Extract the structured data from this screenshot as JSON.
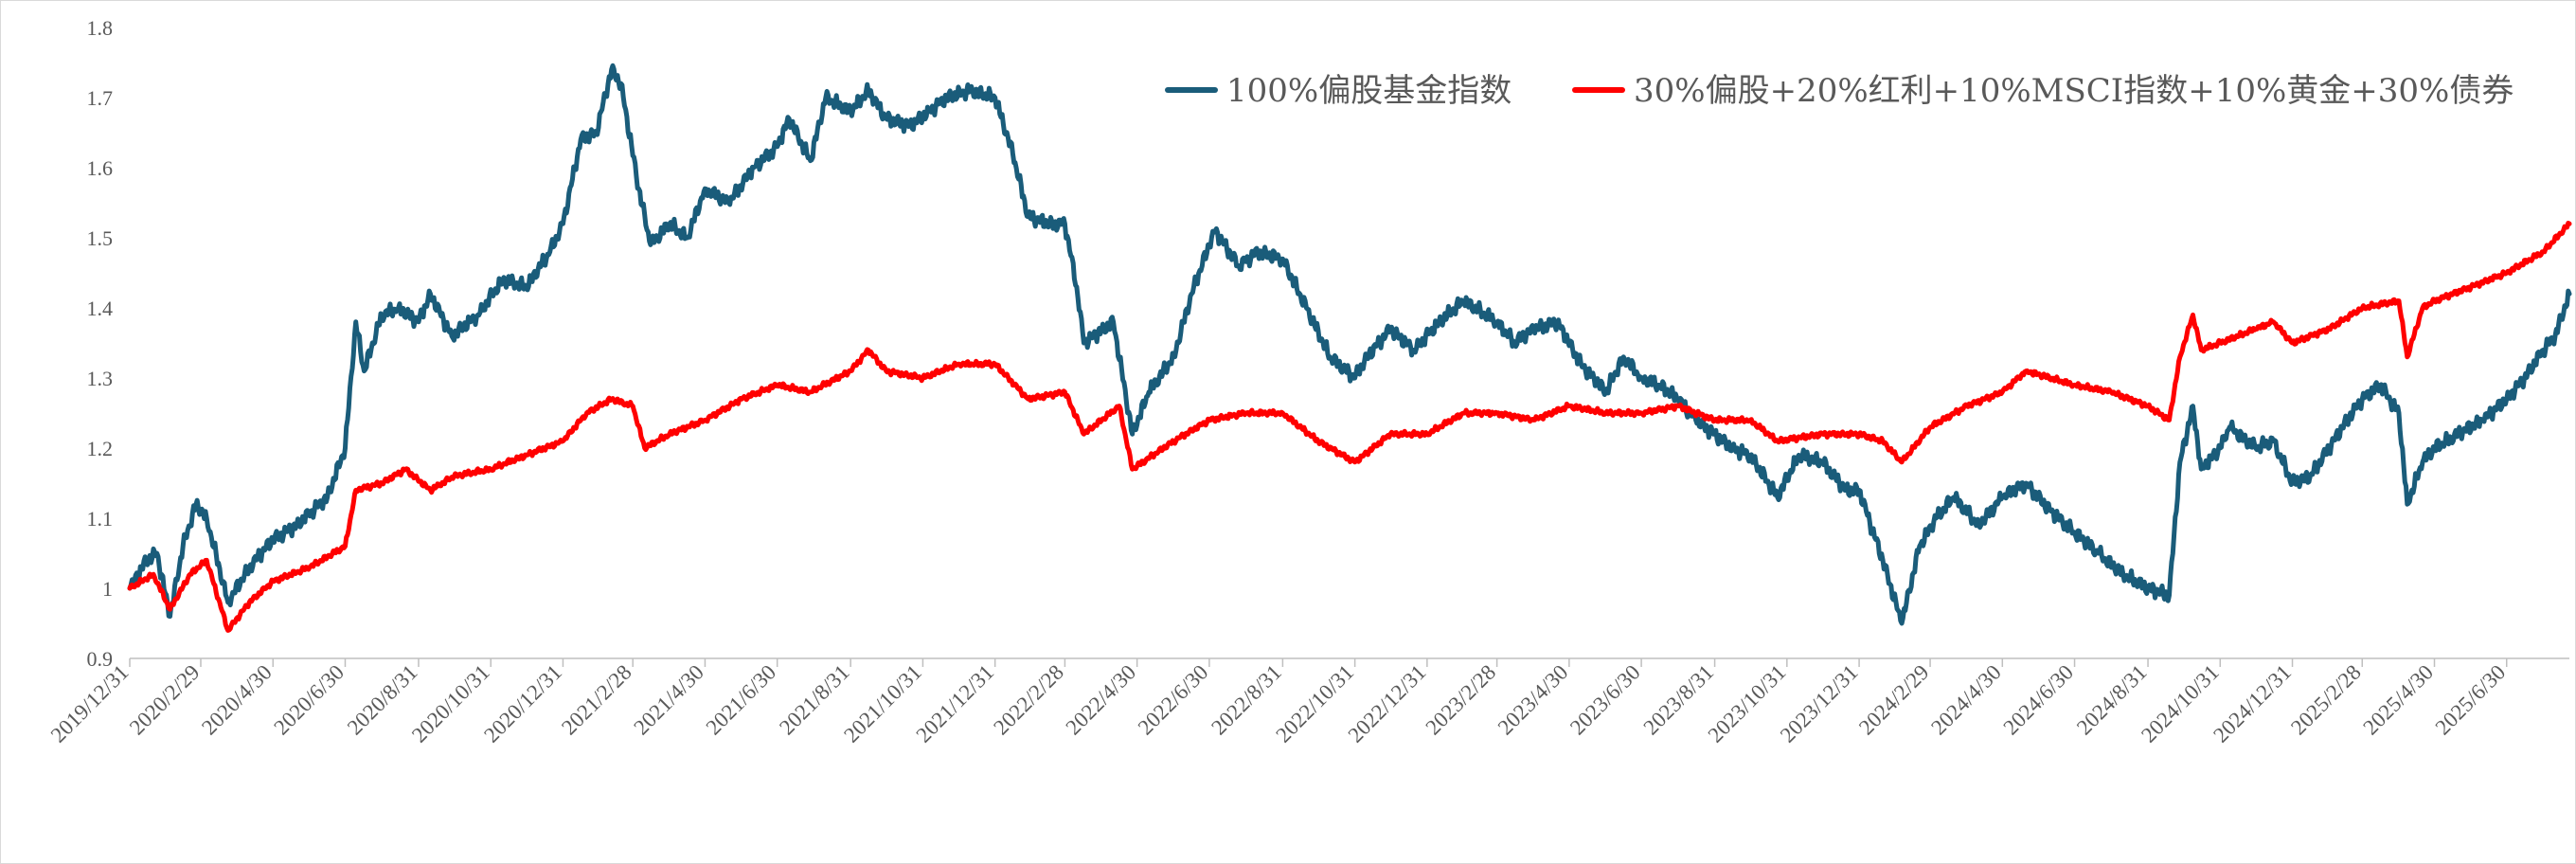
{
  "chart_data": {
    "type": "line",
    "title": "",
    "xlabel": "",
    "ylabel": "",
    "ylim": [
      0.9,
      1.8
    ],
    "y_ticks": [
      "0.9",
      "1",
      "1.1",
      "1.2",
      "1.3",
      "1.4",
      "1.5",
      "1.6",
      "1.7",
      "1.8"
    ],
    "x_ticks": [
      "2019/12/31",
      "2020/2/29",
      "2020/4/30",
      "2020/6/30",
      "2020/8/31",
      "2020/10/31",
      "2020/12/31",
      "2021/2/28",
      "2021/4/30",
      "2021/6/30",
      "2021/8/31",
      "2021/10/31",
      "2021/12/31",
      "2022/2/28",
      "2022/4/30",
      "2022/6/30",
      "2022/8/31",
      "2022/10/31",
      "2022/12/31",
      "2023/2/28",
      "2023/4/30",
      "2023/6/30",
      "2023/8/31",
      "2023/10/31",
      "2023/12/31",
      "2024/2/29",
      "2024/4/30",
      "2024/6/30",
      "2024/8/31",
      "2024/10/31",
      "2024/12/31",
      "2025/2/28",
      "2025/4/30",
      "2025/6/30"
    ],
    "x_range": [
      "2019/12/31",
      "2025/8/22"
    ],
    "grid": false,
    "legend_position": "top-right",
    "series": [
      {
        "name": "100%偏股基金指数",
        "color": "#1a5c7a",
        "points": [
          [
            "2019/12/31",
            1.0
          ],
          [
            "2020/1/14",
            1.04
          ],
          [
            "2020/1/23",
            1.05
          ],
          [
            "2020/2/3",
            0.96
          ],
          [
            "2020/2/14",
            1.06
          ],
          [
            "2020/2/25",
            1.12
          ],
          [
            "2020/3/5",
            1.1
          ],
          [
            "2020/3/23",
            0.98
          ],
          [
            "2020/4/10",
            1.03
          ],
          [
            "2020/4/30",
            1.07
          ],
          [
            "2020/5/20",
            1.09
          ],
          [
            "2020/6/15",
            1.13
          ],
          [
            "2020/6/30",
            1.2
          ],
          [
            "2020/7/9",
            1.38
          ],
          [
            "2020/7/16",
            1.31
          ],
          [
            "2020/7/31",
            1.39
          ],
          [
            "2020/8/14",
            1.4
          ],
          [
            "2020/8/31",
            1.38
          ],
          [
            "2020/9/10",
            1.42
          ],
          [
            "2020/9/28",
            1.36
          ],
          [
            "2020/10/20",
            1.39
          ],
          [
            "2020/11/10",
            1.44
          ],
          [
            "2020/11/30",
            1.43
          ],
          [
            "2020/12/20",
            1.48
          ],
          [
            "2020/12/31",
            1.52
          ],
          [
            "2021/1/15",
            1.64
          ],
          [
            "2021/1/28",
            1.65
          ],
          [
            "2021/2/10",
            1.74
          ],
          [
            "2021/2/18",
            1.72
          ],
          [
            "2021/3/5",
            1.57
          ],
          [
            "2021/3/15",
            1.49
          ],
          [
            "2021/3/31",
            1.52
          ],
          [
            "2021/4/15",
            1.5
          ],
          [
            "2021/4/30",
            1.57
          ],
          [
            "2021/5/20",
            1.55
          ],
          [
            "2021/6/10",
            1.6
          ],
          [
            "2021/6/30",
            1.63
          ],
          [
            "2021/7/10",
            1.67
          ],
          [
            "2021/7/28",
            1.61
          ],
          [
            "2021/8/10",
            1.7
          ],
          [
            "2021/8/31",
            1.68
          ],
          [
            "2021/9/15",
            1.71
          ],
          [
            "2021/9/30",
            1.67
          ],
          [
            "2021/10/20",
            1.66
          ],
          [
            "2021/11/5",
            1.68
          ],
          [
            "2021/11/20",
            1.7
          ],
          [
            "2021/12/10",
            1.71
          ],
          [
            "2021/12/31",
            1.7
          ],
          [
            "2022/1/15",
            1.62
          ],
          [
            "2022/1/28",
            1.53
          ],
          [
            "2022/2/15",
            1.52
          ],
          [
            "2022/2/28",
            1.52
          ],
          [
            "2022/3/10",
            1.43
          ],
          [
            "2022/3/16",
            1.35
          ],
          [
            "2022/4/10",
            1.38
          ],
          [
            "2022/4/26",
            1.22
          ],
          [
            "2022/5/10",
            1.28
          ],
          [
            "2022/5/31",
            1.33
          ],
          [
            "2022/6/15",
            1.42
          ],
          [
            "2022/6/30",
            1.49
          ],
          [
            "2022/7/5",
            1.51
          ],
          [
            "2022/7/25",
            1.46
          ],
          [
            "2022/8/10",
            1.48
          ],
          [
            "2022/8/31",
            1.47
          ],
          [
            "2022/9/20",
            1.4
          ],
          [
            "2022/10/10",
            1.33
          ],
          [
            "2022/10/31",
            1.3
          ],
          [
            "2022/11/10",
            1.33
          ],
          [
            "2022/11/30",
            1.37
          ],
          [
            "2022/12/20",
            1.34
          ],
          [
            "2023/1/10",
            1.38
          ],
          [
            "2023/1/31",
            1.41
          ],
          [
            "2023/2/28",
            1.38
          ],
          [
            "2023/3/15",
            1.35
          ],
          [
            "2023/3/31",
            1.37
          ],
          [
            "2023/4/20",
            1.38
          ],
          [
            "2023/5/10",
            1.32
          ],
          [
            "2023/5/31",
            1.28
          ],
          [
            "2023/6/15",
            1.33
          ],
          [
            "2023/6/30",
            1.3
          ],
          [
            "2023/7/15",
            1.29
          ],
          [
            "2023/7/31",
            1.27
          ],
          [
            "2023/8/15",
            1.24
          ],
          [
            "2023/8/31",
            1.22
          ],
          [
            "2023/9/15",
            1.2
          ],
          [
            "2023/9/30",
            1.19
          ],
          [
            "2023/10/23",
            1.13
          ],
          [
            "2023/11/10",
            1.19
          ],
          [
            "2023/11/30",
            1.18
          ],
          [
            "2023/12/20",
            1.14
          ],
          [
            "2023/12/31",
            1.14
          ],
          [
            "2024/1/20",
            1.04
          ],
          [
            "2024/2/5",
            0.95
          ],
          [
            "2024/2/20",
            1.06
          ],
          [
            "2024/3/5",
            1.1
          ],
          [
            "2024/3/20",
            1.13
          ],
          [
            "2024/4/10",
            1.09
          ],
          [
            "2024/4/30",
            1.13
          ],
          [
            "2024/5/20",
            1.15
          ],
          [
            "2024/6/10",
            1.11
          ],
          [
            "2024/6/30",
            1.08
          ],
          [
            "2024/7/20",
            1.05
          ],
          [
            "2024/8/10",
            1.02
          ],
          [
            "2024/8/31",
            1.0
          ],
          [
            "2024/9/18",
            0.99
          ],
          [
            "2024/9/27",
            1.18
          ],
          [
            "2024/10/8",
            1.26
          ],
          [
            "2024/10/15",
            1.17
          ],
          [
            "2024/10/31",
            1.2
          ],
          [
            "2024/11/8",
            1.23
          ],
          [
            "2024/11/30",
            1.2
          ],
          [
            "2024/12/15",
            1.21
          ],
          [
            "2024/12/31",
            1.15
          ],
          [
            "2025/1/15",
            1.16
          ],
          [
            "2025/1/31",
            1.2
          ],
          [
            "2025/2/15",
            1.24
          ],
          [
            "2025/2/28",
            1.27
          ],
          [
            "2025/3/15",
            1.29
          ],
          [
            "2025/3/31",
            1.25
          ],
          [
            "2025/4/7",
            1.12
          ],
          [
            "2025/4/20",
            1.18
          ],
          [
            "2025/4/30",
            1.2
          ],
          [
            "2025/5/20",
            1.22
          ],
          [
            "2025/6/10",
            1.24
          ],
          [
            "2025/6/30",
            1.27
          ],
          [
            "2025/7/15",
            1.3
          ],
          [
            "2025/7/31",
            1.34
          ],
          [
            "2025/8/10",
            1.36
          ],
          [
            "2025/8/22",
            1.42
          ]
        ]
      },
      {
        "name": "30%偏股+20%红利+10%MSCI指数+10%黄金+30%债券",
        "color": "#ff0000",
        "points": [
          [
            "2019/12/31",
            1.0
          ],
          [
            "2020/1/20",
            1.02
          ],
          [
            "2020/2/3",
            0.97
          ],
          [
            "2020/2/20",
            1.02
          ],
          [
            "2020/3/5",
            1.04
          ],
          [
            "2020/3/23",
            0.94
          ],
          [
            "2020/4/10",
            0.98
          ],
          [
            "2020/4/30",
            1.01
          ],
          [
            "2020/5/31",
            1.03
          ],
          [
            "2020/6/30",
            1.06
          ],
          [
            "2020/7/9",
            1.14
          ],
          [
            "2020/7/31",
            1.15
          ],
          [
            "2020/8/20",
            1.17
          ],
          [
            "2020/9/10",
            1.14
          ],
          [
            "2020/9/30",
            1.16
          ],
          [
            "2020/10/31",
            1.17
          ],
          [
            "2020/11/30",
            1.19
          ],
          [
            "2020/12/31",
            1.21
          ],
          [
            "2021/1/20",
            1.25
          ],
          [
            "2021/2/10",
            1.27
          ],
          [
            "2021/2/28",
            1.26
          ],
          [
            "2021/3/10",
            1.2
          ],
          [
            "2021/3/31",
            1.22
          ],
          [
            "2021/4/30",
            1.24
          ],
          [
            "2021/5/31",
            1.27
          ],
          [
            "2021/6/30",
            1.29
          ],
          [
            "2021/7/28",
            1.28
          ],
          [
            "2021/8/31",
            1.31
          ],
          [
            "2021/9/15",
            1.34
          ],
          [
            "2021/9/30",
            1.31
          ],
          [
            "2021/10/31",
            1.3
          ],
          [
            "2021/11/30",
            1.32
          ],
          [
            "2021/12/31",
            1.32
          ],
          [
            "2022/1/28",
            1.27
          ],
          [
            "2022/2/28",
            1.28
          ],
          [
            "2022/3/16",
            1.22
          ],
          [
            "2022/4/15",
            1.26
          ],
          [
            "2022/4/26",
            1.17
          ],
          [
            "2022/5/31",
            1.21
          ],
          [
            "2022/6/30",
            1.24
          ],
          [
            "2022/7/31",
            1.25
          ],
          [
            "2022/8/31",
            1.25
          ],
          [
            "2022/9/30",
            1.21
          ],
          [
            "2022/10/31",
            1.18
          ],
          [
            "2022/11/30",
            1.22
          ],
          [
            "2022/12/31",
            1.22
          ],
          [
            "2023/1/31",
            1.25
          ],
          [
            "2023/2/28",
            1.25
          ],
          [
            "2023/3/31",
            1.24
          ],
          [
            "2023/4/30",
            1.26
          ],
          [
            "2023/5/31",
            1.25
          ],
          [
            "2023/6/30",
            1.25
          ],
          [
            "2023/7/31",
            1.26
          ],
          [
            "2023/8/31",
            1.24
          ],
          [
            "2023/9/30",
            1.24
          ],
          [
            "2023/10/23",
            1.21
          ],
          [
            "2023/11/30",
            1.22
          ],
          [
            "2023/12/31",
            1.22
          ],
          [
            "2024/1/20",
            1.21
          ],
          [
            "2024/2/5",
            1.18
          ],
          [
            "2024/2/29",
            1.23
          ],
          [
            "2024/3/31",
            1.26
          ],
          [
            "2024/4/30",
            1.28
          ],
          [
            "2024/5/20",
            1.31
          ],
          [
            "2024/6/30",
            1.29
          ],
          [
            "2024/7/31",
            1.28
          ],
          [
            "2024/8/31",
            1.26
          ],
          [
            "2024/9/18",
            1.24
          ],
          [
            "2024/9/27",
            1.33
          ],
          [
            "2024/10/8",
            1.39
          ],
          [
            "2024/10/15",
            1.34
          ],
          [
            "2024/10/31",
            1.35
          ],
          [
            "2024/11/30",
            1.37
          ],
          [
            "2024/12/15",
            1.38
          ],
          [
            "2024/12/31",
            1.35
          ],
          [
            "2025/1/31",
            1.37
          ],
          [
            "2025/2/28",
            1.4
          ],
          [
            "2025/3/31",
            1.41
          ],
          [
            "2025/4/7",
            1.33
          ],
          [
            "2025/4/20",
            1.4
          ],
          [
            "2025/4/30",
            1.41
          ],
          [
            "2025/5/31",
            1.43
          ],
          [
            "2025/6/30",
            1.45
          ],
          [
            "2025/7/31",
            1.48
          ],
          [
            "2025/8/22",
            1.52
          ]
        ]
      }
    ]
  }
}
